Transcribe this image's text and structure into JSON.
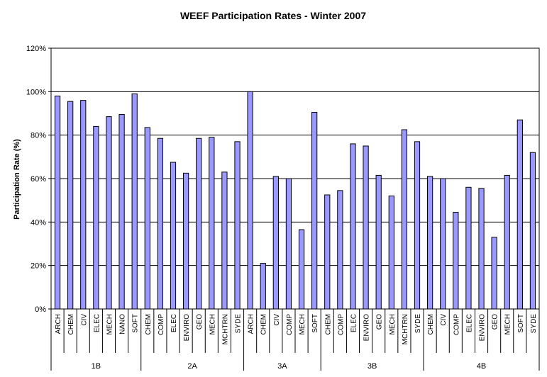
{
  "chart_data": {
    "type": "bar",
    "title": "WEEF Participation Rates - Winter 2007",
    "xlabel": "",
    "ylabel": "Participation Rate (%)",
    "ylim": [
      0,
      120
    ],
    "yticks": [
      "0%",
      "20%",
      "40%",
      "60%",
      "80%",
      "100%",
      "120%"
    ],
    "grid": true,
    "legend": "none",
    "bar_color": "#9999ff",
    "bar_edge_color": "#000000",
    "groups": [
      {
        "name": "1B",
        "categories": [
          "ARCH",
          "CHEM",
          "CIV",
          "ELEC",
          "MECH",
          "NANO",
          "SOFT"
        ],
        "values": [
          98,
          95.5,
          96,
          84,
          88.5,
          89.5,
          99
        ]
      },
      {
        "name": "2A",
        "categories": [
          "CHEM",
          "COMP",
          "ELEC",
          "ENVIRO",
          "GEO",
          "MECH",
          "MCHTRN",
          "SYDE"
        ],
        "values": [
          83.5,
          78.5,
          67.5,
          62.5,
          78.5,
          79,
          63,
          77
        ]
      },
      {
        "name": "3A",
        "categories": [
          "ARCH",
          "CHEM",
          "CIV",
          "COMP",
          "MECH",
          "SOFT"
        ],
        "values": [
          100,
          21,
          61,
          60,
          36.5,
          90.5
        ]
      },
      {
        "name": "3B",
        "categories": [
          "CHEM",
          "COMP",
          "ELEC",
          "ENVIRO",
          "GEO",
          "MECH",
          "MCHTRN",
          "SYDE"
        ],
        "values": [
          52.5,
          54.5,
          76,
          75,
          61.5,
          52,
          82.5,
          77
        ]
      },
      {
        "name": "4B",
        "categories": [
          "CHEM",
          "CIV",
          "COMP",
          "ELEC",
          "ENVIRO",
          "GEO",
          "MECH",
          "SOFT",
          "SYDE"
        ],
        "values": [
          61,
          60,
          44.5,
          56,
          55.5,
          33,
          61.5,
          87,
          72
        ]
      }
    ]
  }
}
